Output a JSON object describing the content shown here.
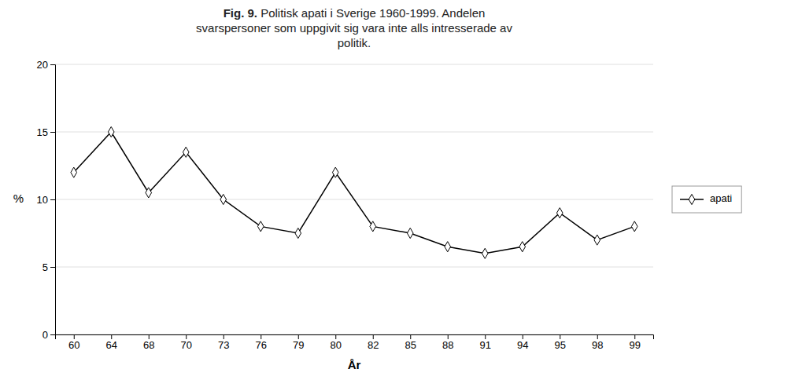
{
  "chart_data": {
    "type": "line",
    "title": [
      "Fig. 9. Politisk apati i Sverige 1960-1999. Andelen",
      "svarspersoner som uppgivit sig vara inte alls intresserade av",
      "politik."
    ],
    "x_label": "År",
    "y_label": "%",
    "categories": [
      "60",
      "64",
      "68",
      "70",
      "73",
      "76",
      "79",
      "80",
      "82",
      "85",
      "88",
      "91",
      "94",
      "95",
      "98",
      "99"
    ],
    "series": [
      {
        "name": "apati",
        "color": "#000000",
        "marker": "diamond",
        "line_style": "solid",
        "values": [
          12.0,
          15.0,
          10.5,
          13.5,
          10.0,
          8.0,
          7.5,
          12.0,
          8.0,
          7.5,
          6.5,
          6.0,
          6.5,
          9.0,
          7.0,
          8.0
        ]
      }
    ],
    "ylim": [
      0,
      20
    ],
    "yticks": [
      0,
      5,
      10,
      15,
      20
    ],
    "grid": true,
    "legend": "right"
  }
}
